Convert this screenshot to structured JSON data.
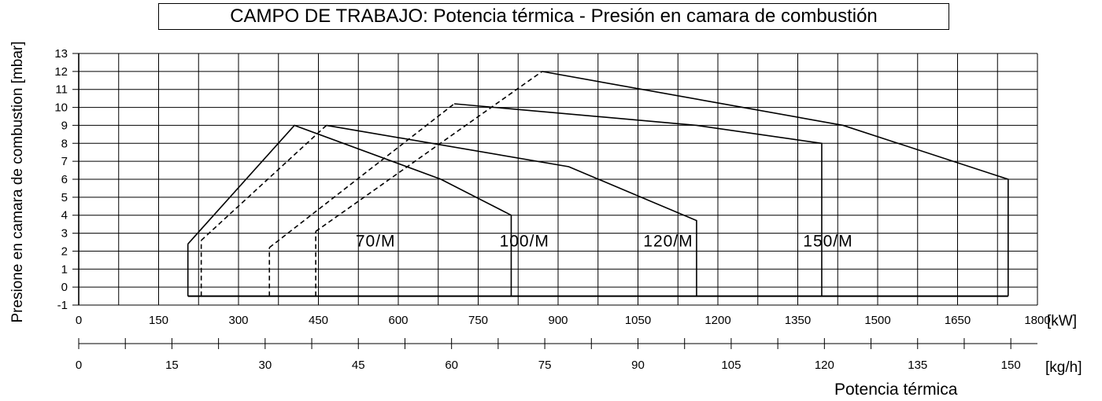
{
  "chart_data": {
    "type": "line",
    "title": "CAMPO DE TRABAJO: Potencia térmica - Presión en camara de combustión",
    "ylabel": "Presione en camara de combustion [mbar]",
    "xlabel": "Potencia térmica",
    "xunit_kw": "[kW]",
    "xunit_kgh": "[kg/h]",
    "xlim": [
      0,
      1800
    ],
    "ylim": [
      -1,
      13
    ],
    "grid": true,
    "x_ticks": [
      "0",
      "150",
      "300",
      "450",
      "600",
      "750",
      "900",
      "1050",
      "1200",
      "1350",
      "1500",
      "1650",
      "1800"
    ],
    "kgh_ticks": [
      "0",
      "15",
      "30",
      "45",
      "60",
      "75",
      "90",
      "105",
      "120",
      "135",
      "150"
    ],
    "y_ticks": [
      "13",
      "12",
      "11",
      "10",
      "9",
      "8",
      "7",
      "6",
      "5",
      "4",
      "3",
      "2",
      "1",
      "0",
      "-1"
    ],
    "series": [
      {
        "name": "70/M",
        "label_at": [
          520,
          2.6
        ],
        "start_line": {
          "x": 205,
          "y": [
            -0.5,
            2.4
          ]
        },
        "curve": [
          [
            205,
            2.4
          ],
          [
            405,
            9
          ],
          [
            680,
            6
          ],
          [
            812,
            4
          ],
          [
            812,
            -0.5
          ]
        ]
      },
      {
        "name": "100/M",
        "label_at": [
          790,
          2.6
        ],
        "start_line": {
          "x": 230,
          "y": [
            -0.5,
            2.6
          ]
        },
        "curve": [
          [
            230,
            2.6
          ],
          [
            465,
            9
          ],
          [
            920,
            6.7
          ],
          [
            1160,
            3.7
          ],
          [
            1160,
            -0.5
          ]
        ]
      },
      {
        "name": "120/M",
        "label_at": [
          1060,
          2.6
        ],
        "start_line": {
          "x": 358,
          "y": [
            -0.5,
            2.2
          ]
        },
        "curve": [
          [
            358,
            2.2
          ],
          [
            705,
            10.2
          ],
          [
            1160,
            9
          ],
          [
            1395,
            8
          ],
          [
            1395,
            -0.5
          ]
        ]
      },
      {
        "name": "150/M",
        "label_at": [
          1360,
          2.6
        ],
        "start_line": {
          "x": 445,
          "y": [
            -0.5,
            3.1
          ]
        },
        "curve": [
          [
            445,
            3.1
          ],
          [
            870,
            12
          ],
          [
            1435,
            9
          ],
          [
            1745,
            6
          ],
          [
            1745,
            -0.5
          ]
        ]
      }
    ],
    "baseline": {
      "y": -0.5,
      "x": [
        205,
        1745
      ]
    }
  }
}
